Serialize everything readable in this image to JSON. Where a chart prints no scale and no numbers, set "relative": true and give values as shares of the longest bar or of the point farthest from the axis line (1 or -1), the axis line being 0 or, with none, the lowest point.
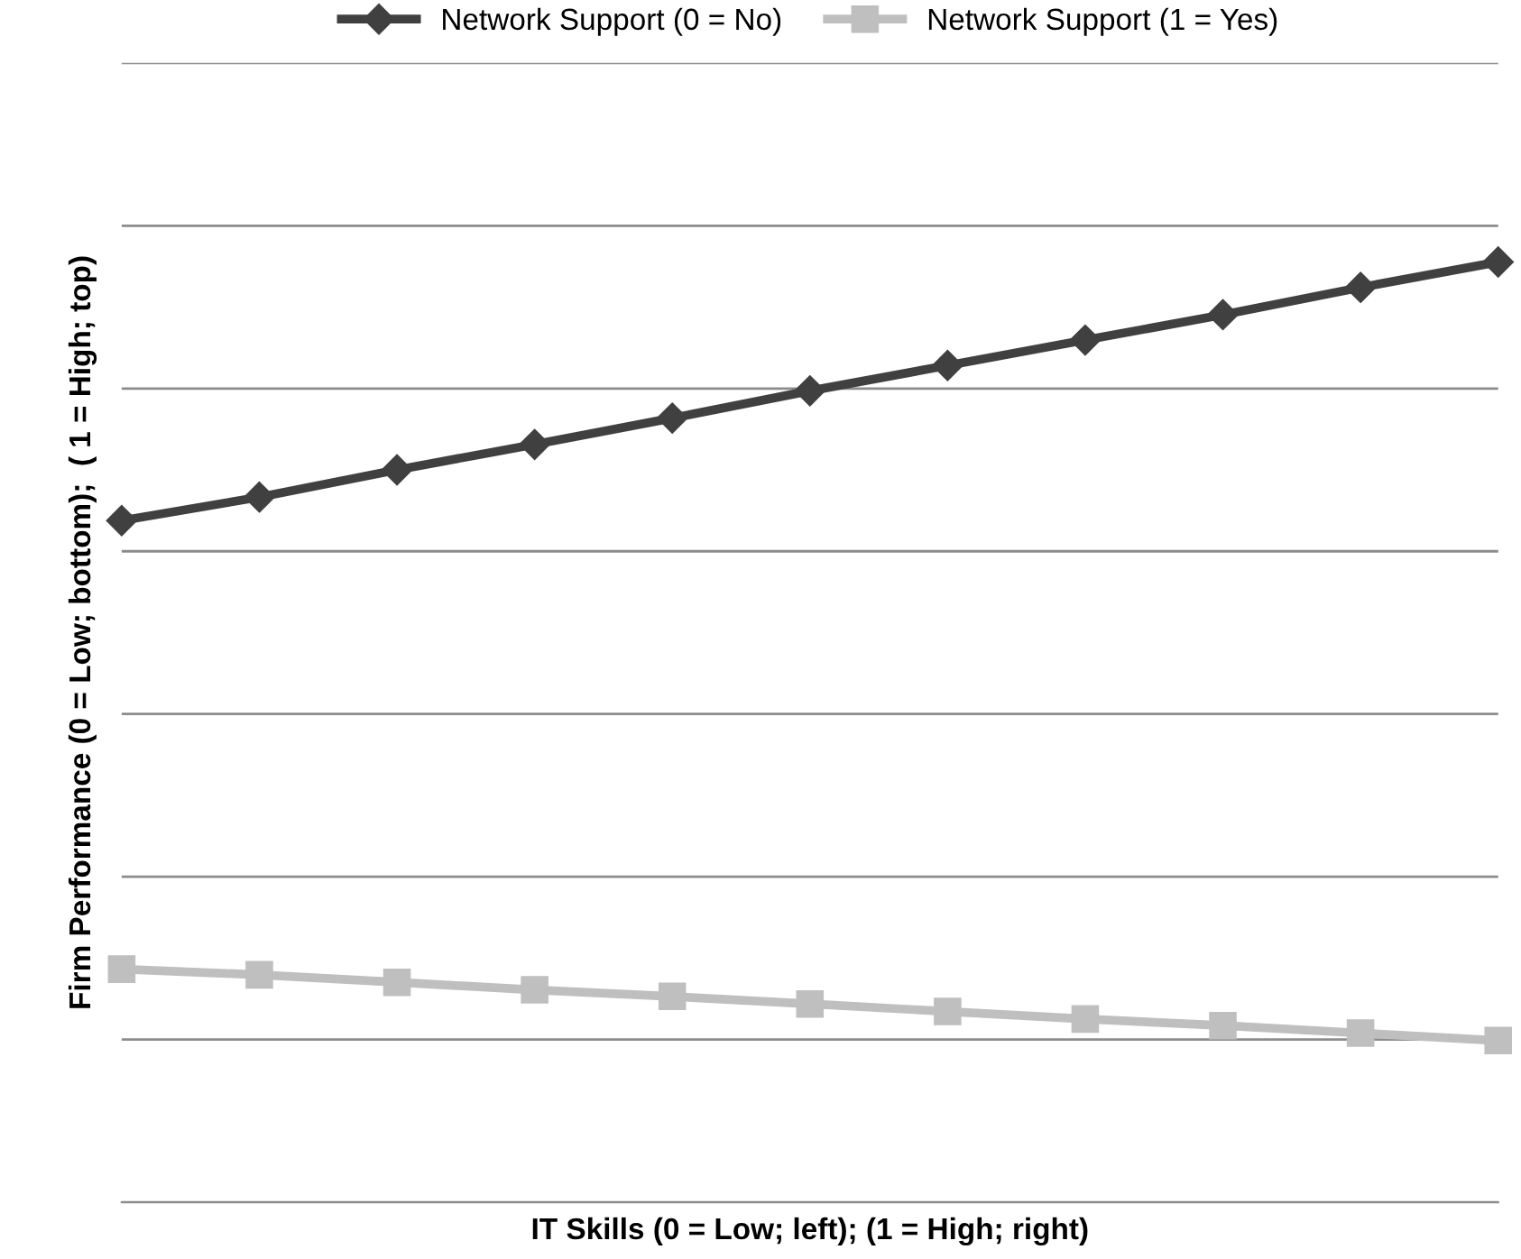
{
  "chart_data": {
    "type": "line",
    "relative": true,
    "xlabel": "IT Skills (0 = Low; left); (1 = High; right)",
    "ylabel": "Firm Performance (0 = Low; bottom);  ( 1 = High; top)",
    "categories": [
      null,
      null,
      null,
      null,
      null,
      null,
      null,
      null,
      null,
      null,
      null
    ],
    "series": [
      {
        "name": "Network Support (0 = No)",
        "color": "#404040",
        "marker": "diamond",
        "values": [
          0.725,
          0.75,
          0.779,
          0.806,
          0.834,
          0.863,
          0.89,
          0.917,
          0.944,
          0.973,
          1.0
        ]
      },
      {
        "name": "Network Support (1 = Yes)",
        "color": "#bfbfbf",
        "marker": "square",
        "values": [
          0.248,
          0.242,
          0.234,
          0.226,
          0.219,
          0.211,
          0.203,
          0.195,
          0.188,
          0.18,
          0.172
        ]
      }
    ],
    "grid": "y",
    "legend": "top",
    "tick_labels": false
  }
}
